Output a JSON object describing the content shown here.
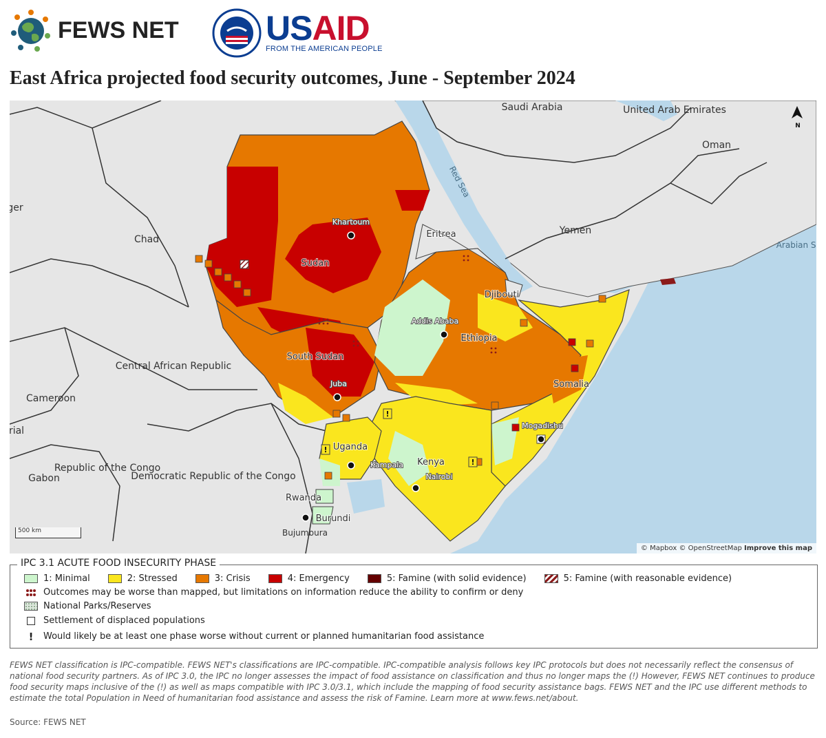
{
  "header": {
    "fews_name": "FEWS NET",
    "usaid_u": "US",
    "usaid_r": "AID",
    "usaid_tagline": "FROM THE AMERICAN PEOPLE"
  },
  "title": "East Africa projected food security outcomes, June - September 2024",
  "map": {
    "countries": {
      "saudi_arabia": "Saudi Arabia",
      "uae": "United Arab Emirates",
      "oman": "Oman",
      "yemen": "Yemen",
      "eritrea": "Eritrea",
      "djibouti": "Djibouti",
      "ethiopia": "Ethiopia",
      "somalia": "Somalia",
      "sudan": "Sudan",
      "south_sudan": "South Sudan",
      "chad": "Chad",
      "niger": "ger",
      "car": "Central African Republic",
      "cameroon": "Cameroon",
      "eq_guinea": "rial",
      "gabon": "Gabon",
      "congo": "Republic of the Congo",
      "drc": "Democratic Republic of the Congo",
      "uganda": "Uganda",
      "kenya": "Kenya",
      "rwanda": "Rwanda",
      "burundi": "Burundi"
    },
    "cities": {
      "khartoum": "Khartoum",
      "addis_ababa": "Addis Ababa",
      "juba": "Juba",
      "kampala": "Kampala",
      "nairobi": "Nairobi",
      "mogadishu": "Mogadishu",
      "bujumbura": "Bujumbura"
    },
    "seas": {
      "red_sea": "Red Sea",
      "arabian_sea": "Arabian Sea"
    },
    "scale_label": "500 km",
    "north_label": "N",
    "attribution_mapbox": "© Mapbox",
    "attribution_osm": "© OpenStreetMap",
    "attribution_improve": "Improve this map"
  },
  "legend": {
    "title": "IPC 3.1 ACUTE FOOD INSECURITY PHASE",
    "phases": [
      {
        "label": "1: Minimal",
        "color": "#cdf5cd"
      },
      {
        "label": "2: Stressed",
        "color": "#fae61e"
      },
      {
        "label": "3: Crisis",
        "color": "#e67800"
      },
      {
        "label": "4: Emergency",
        "color": "#c80000"
      },
      {
        "label": "5: Famine (with solid evidence)",
        "color": "#640000"
      },
      {
        "label": "5: Famine (with reasonable evidence)",
        "color": "#8b1a1a"
      }
    ],
    "outcomes_worse": "Outcomes may be worse than mapped, but limitations on information reduce the ability to confirm or deny",
    "parks": "National Parks/Reserves",
    "settlement": "Settlement of displaced populations",
    "assistance": "Would likely be at least one phase worse without current or planned humanitarian food assistance"
  },
  "footnote": "FEWS NET classification is IPC-compatible. FEWS NET's classifications are IPC-compatible. IPC-compatible analysis follows key IPC protocols but does not necessarily reflect the consensus of national food security partners. As of IPC 3.0, the IPC no longer assesses the impact of food assistance on classification and thus no longer maps the (!) However, FEWS NET continues to produce food security maps inclusive of the (!) as well as maps compatible with IPC 3.0/3.1, which include the mapping of food security assistance bags. FEWS NET and the IPC use different methods to estimate the total Population in Need of humanitarian food assistance and assess the risk of Famine. Learn more at www.fews.net/about.",
  "source": "Source: FEWS NET"
}
